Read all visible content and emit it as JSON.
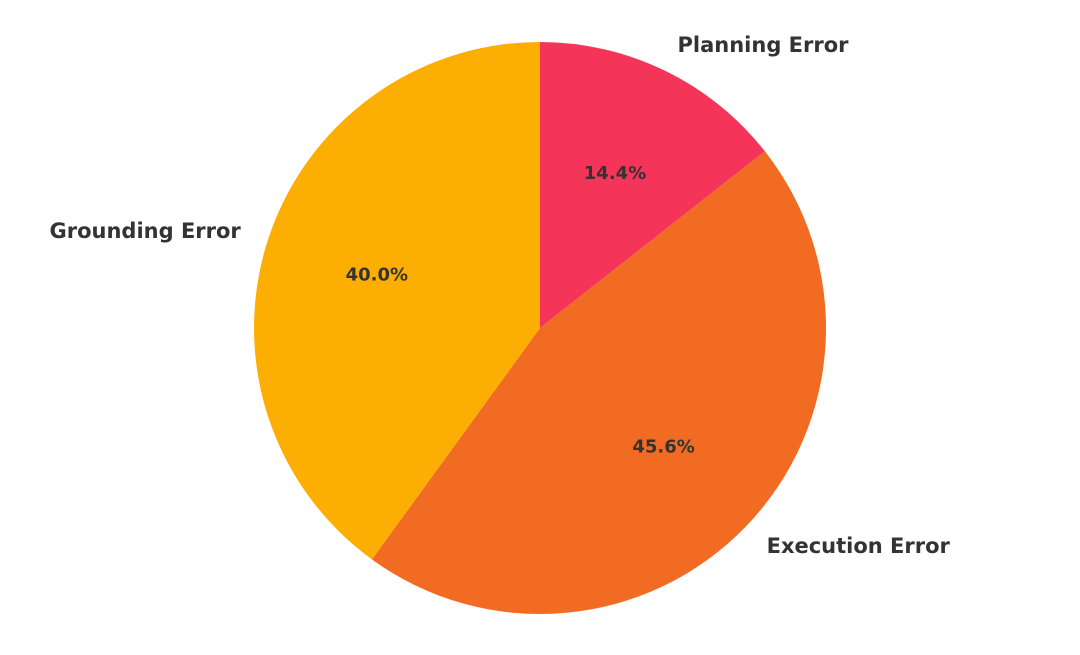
{
  "chart_data": {
    "type": "pie",
    "title": "",
    "start_angle_deg": 90,
    "direction": "clockwise",
    "legend": "none",
    "slices": [
      {
        "label": "Planning Error",
        "value": 14.4,
        "pct_text": "14.4%",
        "color": "#f5345a"
      },
      {
        "label": "Execution Error",
        "value": 45.6,
        "pct_text": "45.6%",
        "color": "#f26b22"
      },
      {
        "label": "Grounding Error",
        "value": 40.0,
        "pct_text": "40.0%",
        "color": "#fdae02"
      }
    ]
  }
}
